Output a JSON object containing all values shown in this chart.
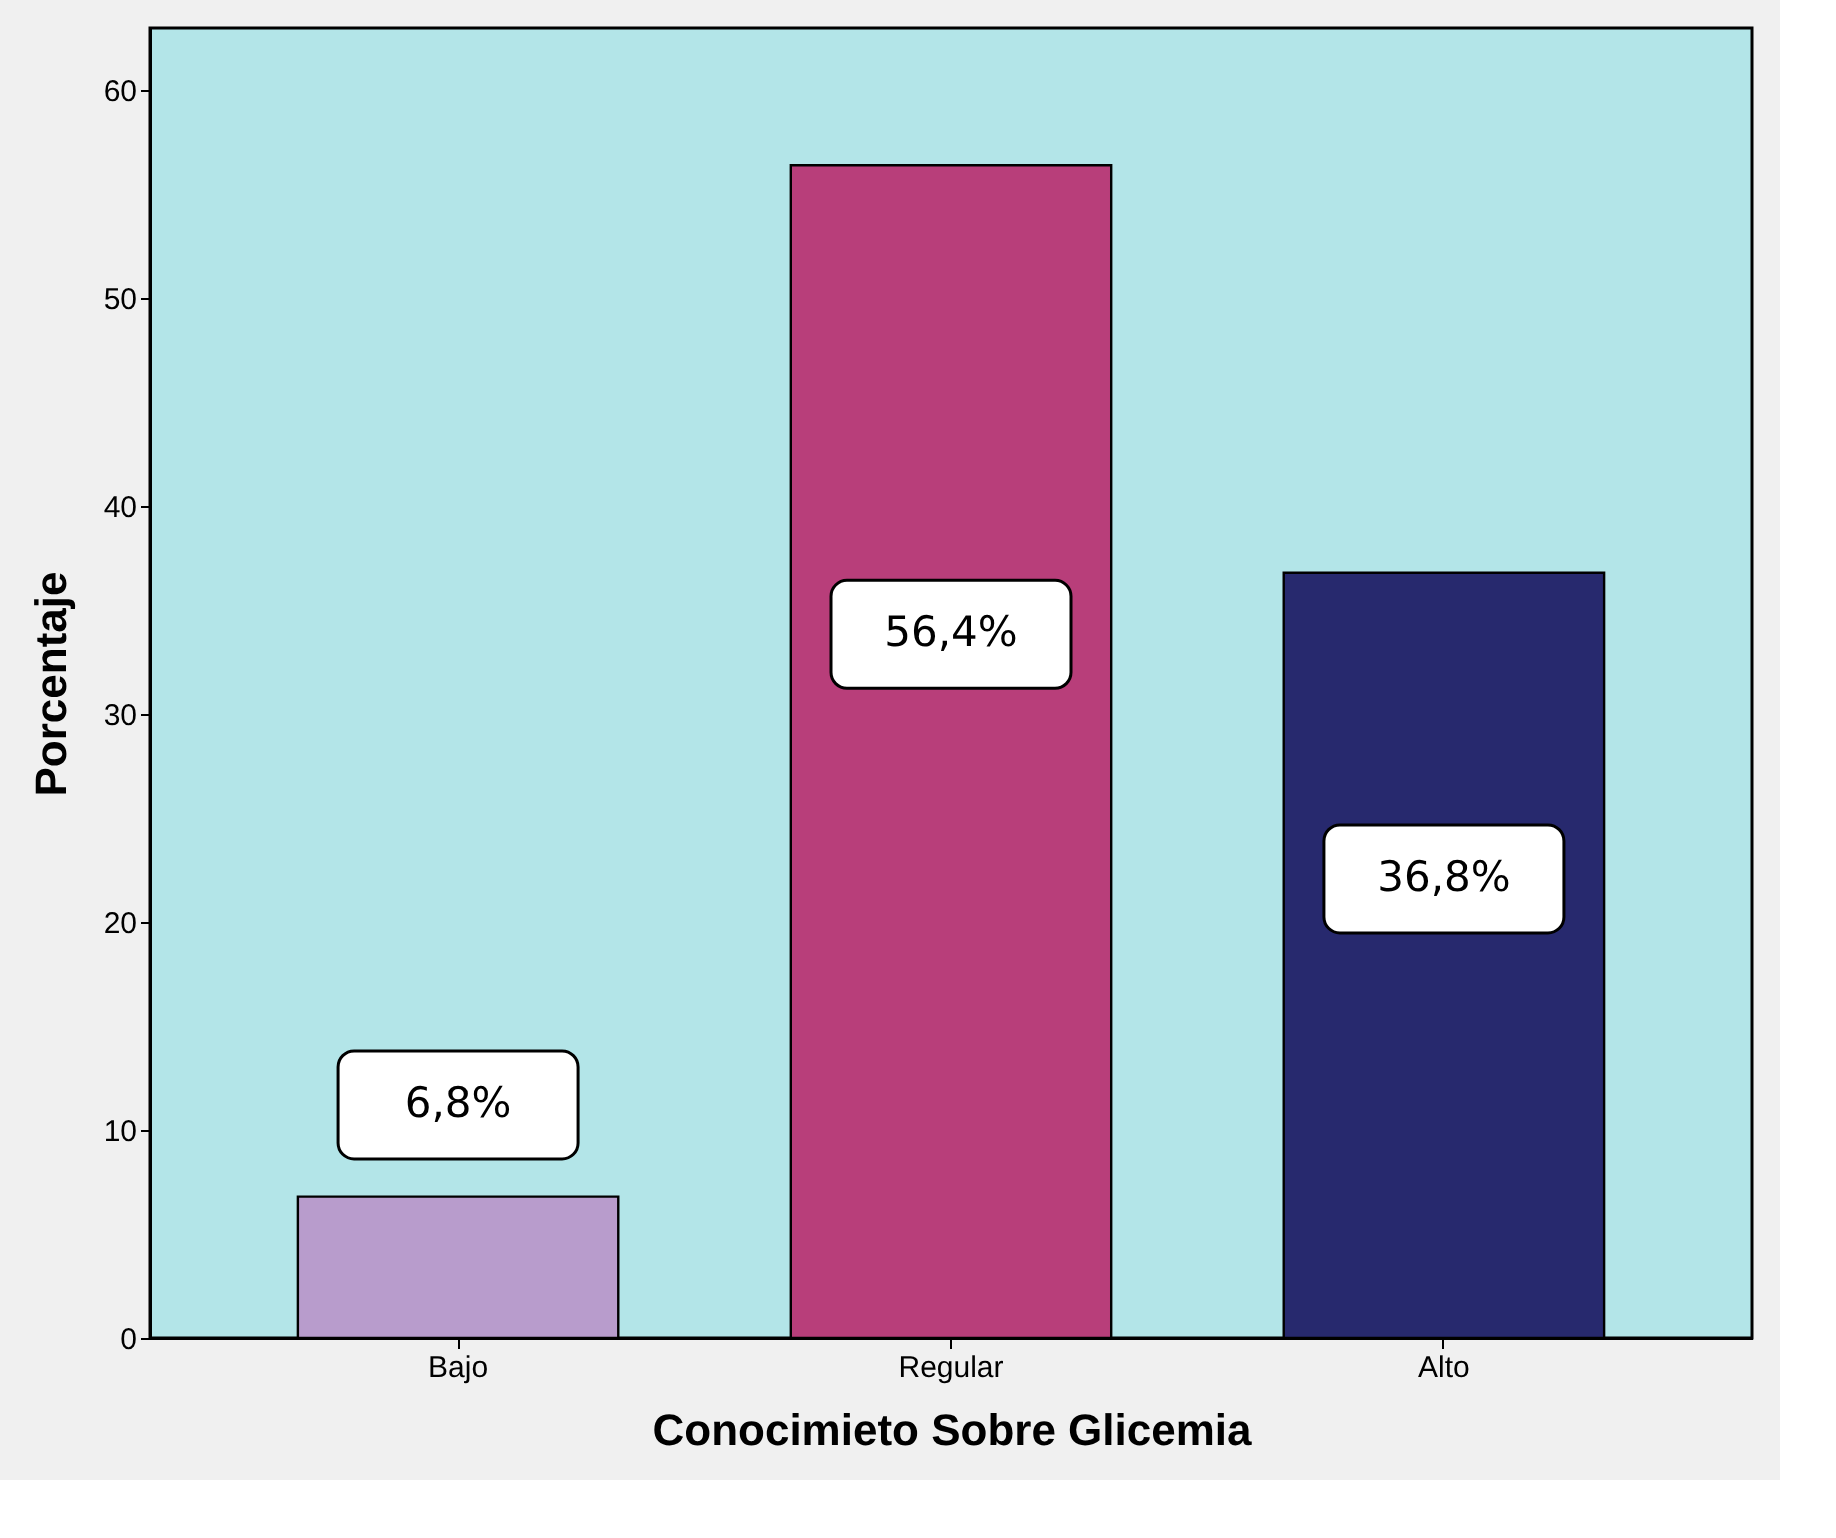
{
  "chart_data": {
    "type": "bar",
    "xlabel": "Conocimieto Sobre Glicemia",
    "ylabel": "Porcentaje",
    "categories": [
      "Bajo",
      "Regular",
      "Alto"
    ],
    "values": [
      6.8,
      56.4,
      36.8
    ],
    "colors": [
      "#b89ccc",
      "#b83e7a",
      "#27296e"
    ],
    "value_labels": [
      "6,8%",
      "56,4%",
      "36,8%"
    ],
    "ylim": [
      0,
      63
    ],
    "yticks": [
      0,
      10,
      20,
      30,
      40,
      50,
      60
    ],
    "grid": false
  }
}
